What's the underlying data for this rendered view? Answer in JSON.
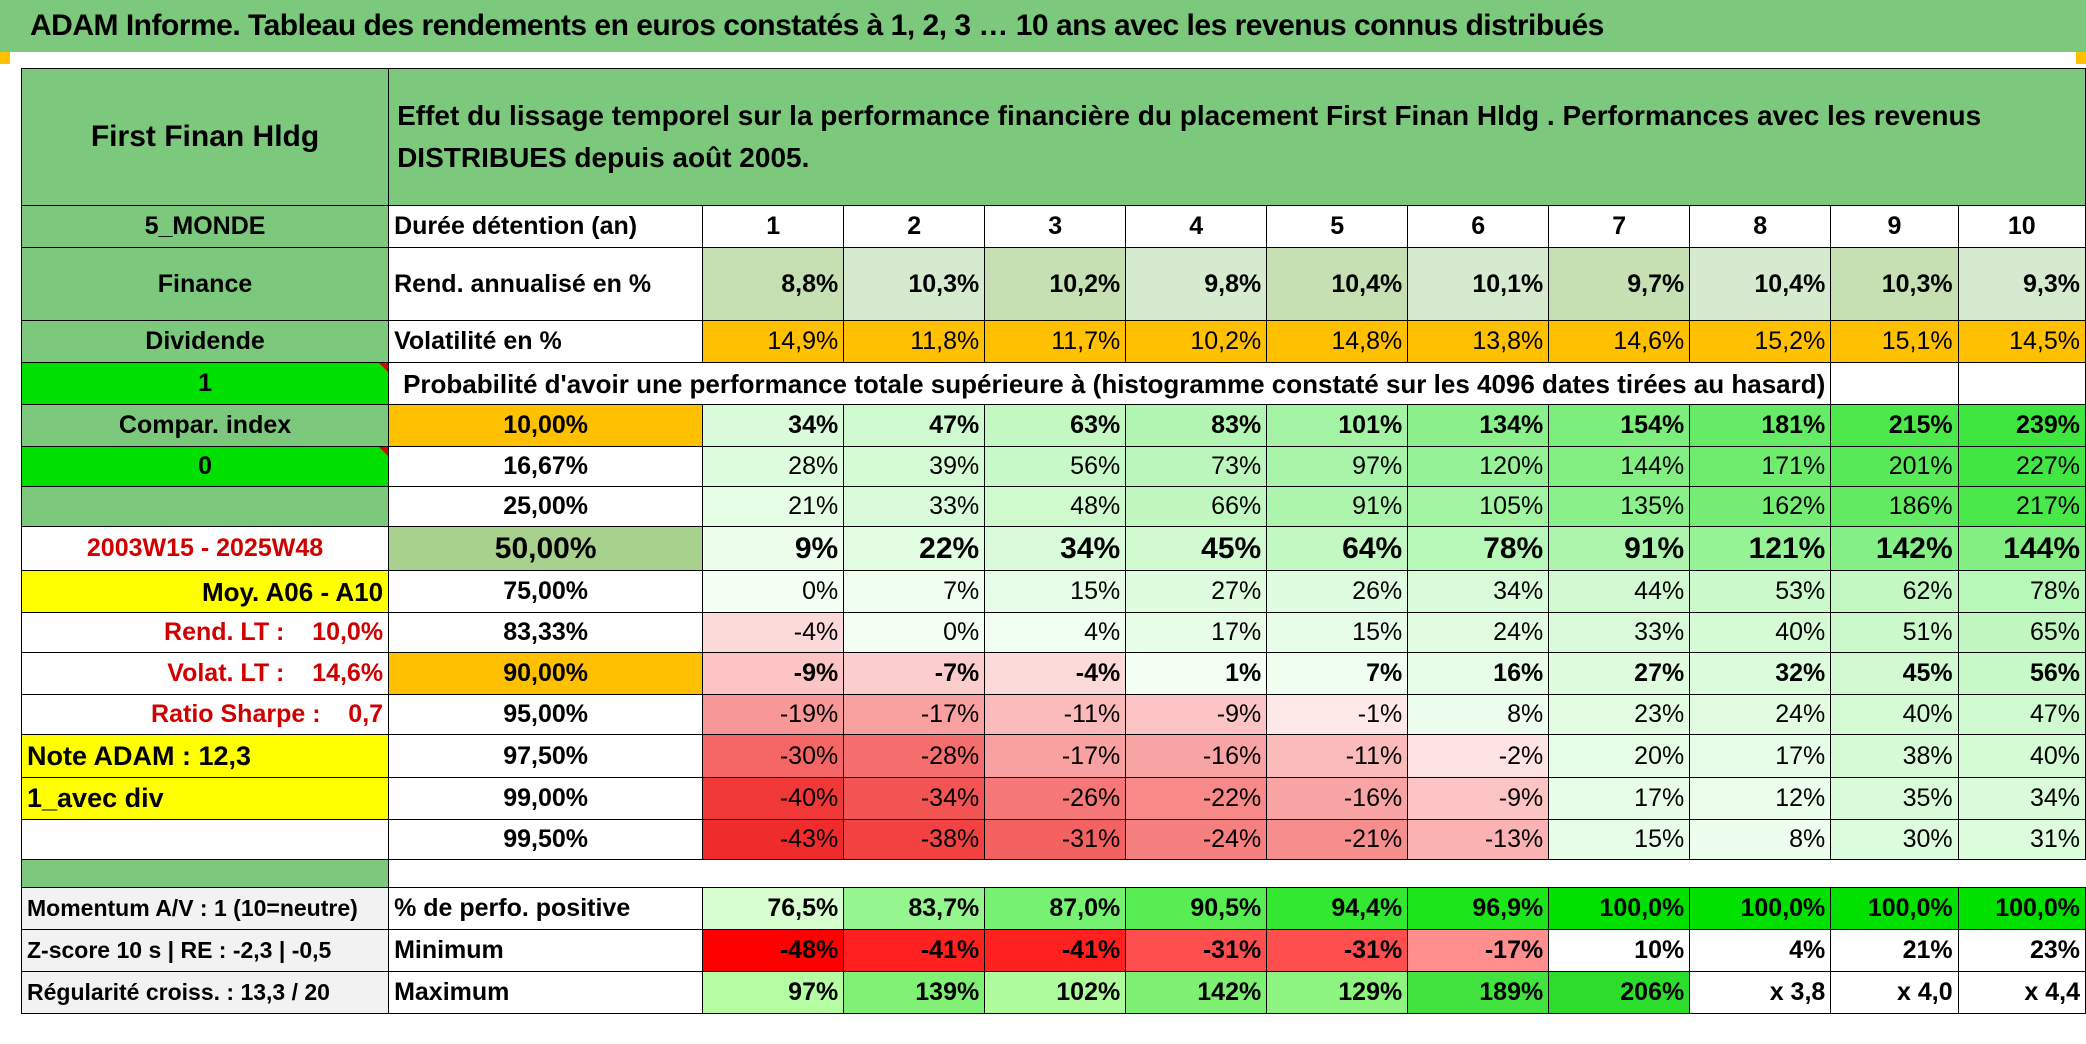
{
  "title": "ADAM Informe. Tableau des rendements en euros constatés à 1, 2, 3 … 10 ans avec les revenus connus distribués",
  "header": {
    "fund_name": "First Finan Hldg",
    "description": "Effet du lissage temporel sur la performance financière du placement First Finan Hldg . Performances avec les revenus DISTRIBUES depuis août 2005."
  },
  "labels": {
    "region": "5_MONDE",
    "sector": "Finance",
    "dividend": "Dividende",
    "one": "1",
    "compar_index": "Compar. index",
    "zero": "0",
    "empty": "",
    "period": "2003W15 - 2025W48",
    "moy": "Moy. A06 - A10",
    "rend_lt": "Rend. LT :    10,0%",
    "volat_lt": "Volat. LT :    14,6%",
    "sharpe": "Ratio Sharpe :    0,7",
    "note": "Note ADAM : 12,3",
    "avec_div": "1_avec div",
    "momentum": "Momentum A/V : 1 (10=neutre)",
    "zscore": "Z-score 10 s | RE : -2,3 | -0,5",
    "regularite": "Régularité croiss. : 13,3 / 20"
  },
  "row_labels": {
    "duree": "Durée détention (an)",
    "rend": "Rend. annualisé en %",
    "volat": "Volatilité en %",
    "prob": "Probabilité d'avoir une performance totale supérieure à (histogramme constaté sur les 4096 dates tirées au hasard)",
    "positive": "% de perfo. positive",
    "minimum": "Minimum",
    "maximum": "Maximum"
  },
  "years": [
    "1",
    "2",
    "3",
    "4",
    "5",
    "6",
    "7",
    "8",
    "9",
    "10"
  ],
  "rendement": [
    "8,8%",
    "10,3%",
    "10,2%",
    "9,8%",
    "10,4%",
    "10,1%",
    "9,7%",
    "10,4%",
    "10,3%",
    "9,3%"
  ],
  "volatilite": [
    "14,9%",
    "11,8%",
    "11,7%",
    "10,2%",
    "14,8%",
    "13,8%",
    "14,6%",
    "15,2%",
    "15,1%",
    "14,5%"
  ],
  "probabilities": [
    {
      "pct": "10,00%",
      "values": [
        "34%",
        "47%",
        "63%",
        "83%",
        "101%",
        "134%",
        "154%",
        "181%",
        "215%",
        "239%"
      ]
    },
    {
      "pct": "16,67%",
      "values": [
        "28%",
        "39%",
        "56%",
        "73%",
        "97%",
        "120%",
        "144%",
        "171%",
        "201%",
        "227%"
      ]
    },
    {
      "pct": "25,00%",
      "values": [
        "21%",
        "33%",
        "48%",
        "66%",
        "91%",
        "105%",
        "135%",
        "162%",
        "186%",
        "217%"
      ]
    },
    {
      "pct": "50,00%",
      "values": [
        "9%",
        "22%",
        "34%",
        "45%",
        "64%",
        "78%",
        "91%",
        "121%",
        "142%",
        "144%"
      ]
    },
    {
      "pct": "75,00%",
      "values": [
        "0%",
        "7%",
        "15%",
        "27%",
        "26%",
        "34%",
        "44%",
        "53%",
        "62%",
        "78%"
      ]
    },
    {
      "pct": "83,33%",
      "values": [
        "-4%",
        "0%",
        "4%",
        "17%",
        "15%",
        "24%",
        "33%",
        "40%",
        "51%",
        "65%"
      ]
    },
    {
      "pct": "90,00%",
      "values": [
        "-9%",
        "-7%",
        "-4%",
        "1%",
        "7%",
        "16%",
        "27%",
        "32%",
        "45%",
        "56%"
      ]
    },
    {
      "pct": "95,00%",
      "values": [
        "-19%",
        "-17%",
        "-11%",
        "-9%",
        "-1%",
        "8%",
        "23%",
        "24%",
        "40%",
        "47%"
      ]
    },
    {
      "pct": "97,50%",
      "values": [
        "-30%",
        "-28%",
        "-17%",
        "-16%",
        "-11%",
        "-2%",
        "20%",
        "17%",
        "38%",
        "40%"
      ]
    },
    {
      "pct": "99,00%",
      "values": [
        "-40%",
        "-34%",
        "-26%",
        "-22%",
        "-16%",
        "-9%",
        "17%",
        "12%",
        "35%",
        "34%"
      ]
    },
    {
      "pct": "99,50%",
      "values": [
        "-43%",
        "-38%",
        "-31%",
        "-24%",
        "-21%",
        "-13%",
        "15%",
        "8%",
        "30%",
        "31%"
      ]
    }
  ],
  "positive": [
    "76,5%",
    "83,7%",
    "87,0%",
    "90,5%",
    "94,4%",
    "96,9%",
    "100,0%",
    "100,0%",
    "100,0%",
    "100,0%"
  ],
  "minimum": [
    "-48%",
    "-41%",
    "-41%",
    "-31%",
    "-31%",
    "-17%",
    "10%",
    "4%",
    "21%",
    "23%"
  ],
  "maximum": [
    "97%",
    "139%",
    "102%",
    "142%",
    "129%",
    "189%",
    "206%",
    "x 3,8",
    "x 4,0",
    "x 4,4"
  ],
  "colors": {
    "header_green": "#7cc87c",
    "bright_green": "#00e000",
    "orange": "#ffc000",
    "yellow": "#ffff00",
    "red_text": "#d00000",
    "rend_green": "#c6e0b4"
  }
}
